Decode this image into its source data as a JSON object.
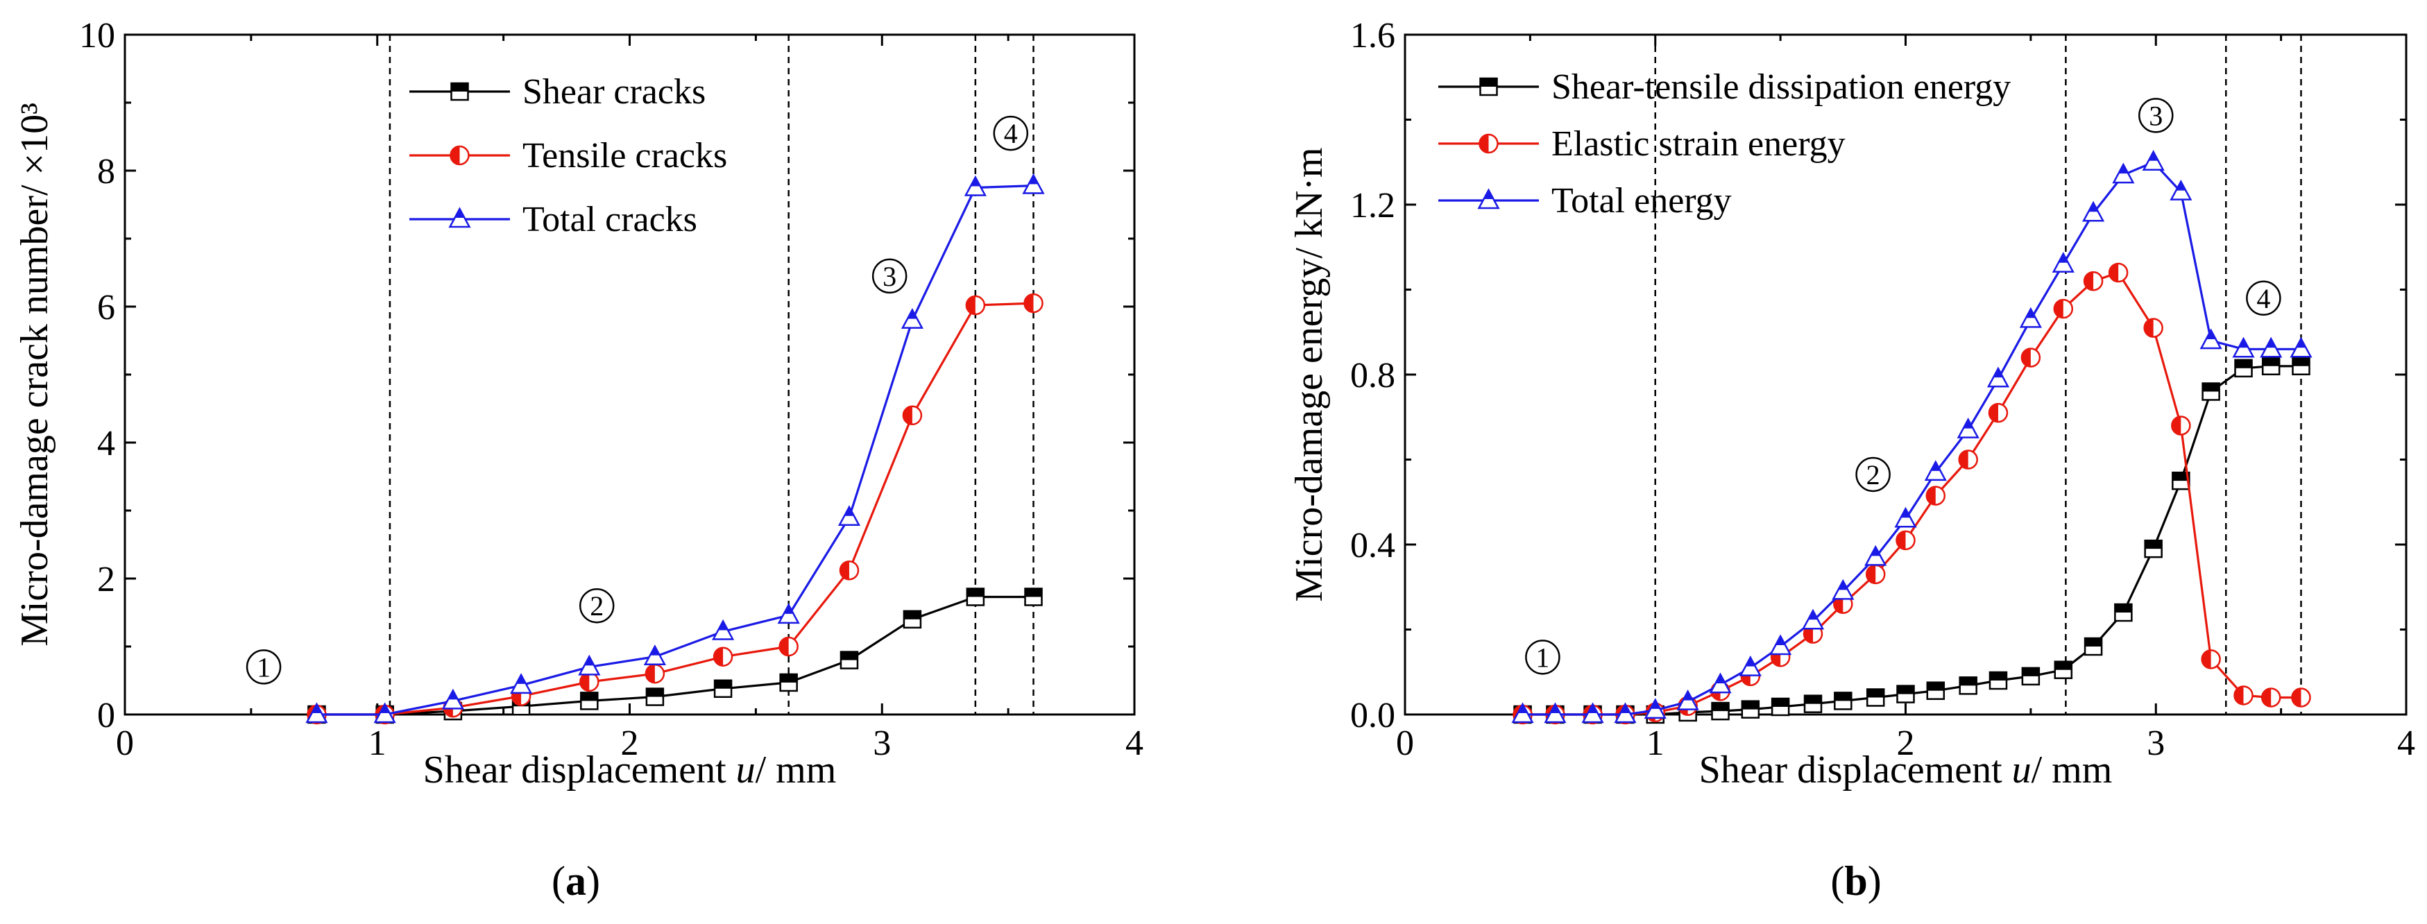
{
  "chart_data": [
    {
      "type": "line",
      "panel": "(a)",
      "panel_letter": "a",
      "xlabel_prefix": "Shear displacement ",
      "xlabel_var": "u",
      "xlabel_suffix": "/ mm",
      "ylabel": "Micro-damage crack number/ ×10³",
      "xlim": [
        0,
        4
      ],
      "ylim": [
        0,
        10
      ],
      "xticks": [
        0,
        1,
        2,
        3,
        4
      ],
      "yticks": [
        0,
        2,
        4,
        6,
        8,
        10
      ],
      "dividers": [
        1.05,
        2.63,
        3.37,
        3.6
      ],
      "phase_labels": [
        {
          "text": "1",
          "x": 0.55,
          "y": 0.7
        },
        {
          "text": "2",
          "x": 1.87,
          "y": 1.6
        },
        {
          "text": "3",
          "x": 3.03,
          "y": 6.45
        },
        {
          "text": "4",
          "x": 3.51,
          "y": 8.55
        }
      ],
      "legend_position": "top-left",
      "series": [
        {
          "name": "Shear cracks",
          "color": "#000000",
          "marker": "square",
          "x": [
            0.76,
            1.03,
            1.3,
            1.57,
            1.84,
            2.1,
            2.37,
            2.63,
            2.87,
            3.12,
            3.37,
            3.6
          ],
          "y": [
            0,
            0,
            0.05,
            0.12,
            0.2,
            0.26,
            0.38,
            0.47,
            0.8,
            1.4,
            1.73,
            1.73
          ]
        },
        {
          "name": "Tensile cracks",
          "color": "#e8180c",
          "marker": "circle-half",
          "x": [
            0.76,
            1.03,
            1.3,
            1.57,
            1.84,
            2.1,
            2.37,
            2.63,
            2.87,
            3.12,
            3.37,
            3.6
          ],
          "y": [
            0,
            0,
            0.1,
            0.27,
            0.48,
            0.6,
            0.85,
            1.0,
            2.12,
            4.4,
            6.02,
            6.05
          ]
        },
        {
          "name": "Total cracks",
          "color": "#1a1ae6",
          "marker": "triangle",
          "x": [
            0.76,
            1.03,
            1.3,
            1.57,
            1.84,
            2.1,
            2.37,
            2.63,
            2.87,
            3.12,
            3.37,
            3.6
          ],
          "y": [
            0,
            0,
            0.2,
            0.43,
            0.7,
            0.85,
            1.22,
            1.46,
            2.9,
            5.8,
            7.75,
            7.78
          ]
        }
      ]
    },
    {
      "type": "line",
      "panel": "(b)",
      "panel_letter": "b",
      "xlabel_prefix": "Shear displacement ",
      "xlabel_var": "u",
      "xlabel_suffix": "/ mm",
      "ylabel": "Micro-damage energy/ kN·m",
      "xlim": [
        0,
        4
      ],
      "ylim": [
        0,
        1.6
      ],
      "xticks": [
        0,
        1,
        2,
        3,
        4
      ],
      "yticks": [
        0.0,
        0.4,
        0.8,
        1.2,
        1.6
      ],
      "ytick_labels": [
        "0.0",
        "0.4",
        "0.8",
        "1.2",
        "1.6"
      ],
      "dividers": [
        1.0,
        2.64,
        3.28,
        3.58
      ],
      "phase_labels": [
        {
          "text": "1",
          "x": 0.55,
          "y": 0.135
        },
        {
          "text": "2",
          "x": 1.87,
          "y": 0.565
        },
        {
          "text": "3",
          "x": 3.0,
          "y": 1.41
        },
        {
          "text": "4",
          "x": 3.43,
          "y": 0.98
        }
      ],
      "legend_position": "top-left",
      "series": [
        {
          "name": "Shear-tensile dissipation energy",
          "color": "#000000",
          "marker": "square",
          "x": [
            0.47,
            0.6,
            0.75,
            0.88,
            1.0,
            1.13,
            1.26,
            1.38,
            1.5,
            1.63,
            1.75,
            1.88,
            2.0,
            2.12,
            2.25,
            2.37,
            2.5,
            2.63,
            2.75,
            2.87,
            2.99,
            3.1,
            3.22,
            3.35,
            3.46,
            3.58
          ],
          "y": [
            0,
            0,
            0,
            0,
            0,
            0.005,
            0.008,
            0.012,
            0.018,
            0.025,
            0.032,
            0.04,
            0.048,
            0.056,
            0.068,
            0.08,
            0.09,
            0.105,
            0.16,
            0.24,
            0.39,
            0.55,
            0.76,
            0.815,
            0.82,
            0.82
          ]
        },
        {
          "name": "Elastic strain energy",
          "color": "#e8180c",
          "marker": "circle-half",
          "x": [
            0.47,
            0.6,
            0.75,
            0.88,
            1.0,
            1.13,
            1.26,
            1.38,
            1.5,
            1.63,
            1.75,
            1.88,
            2.0,
            2.12,
            2.25,
            2.37,
            2.5,
            2.63,
            2.75,
            2.85,
            2.99,
            3.1,
            3.22,
            3.35,
            3.46,
            3.58
          ],
          "y": [
            0,
            0,
            0,
            0,
            0.005,
            0.02,
            0.055,
            0.09,
            0.135,
            0.19,
            0.26,
            0.33,
            0.41,
            0.515,
            0.6,
            0.71,
            0.84,
            0.955,
            1.02,
            1.04,
            0.91,
            0.68,
            0.13,
            0.045,
            0.04,
            0.04
          ]
        },
        {
          "name": "Total energy",
          "color": "#1a1ae6",
          "marker": "triangle",
          "x": [
            0.47,
            0.6,
            0.75,
            0.88,
            1.0,
            1.13,
            1.26,
            1.38,
            1.5,
            1.63,
            1.75,
            1.88,
            2.0,
            2.12,
            2.25,
            2.37,
            2.5,
            2.63,
            2.75,
            2.87,
            2.99,
            3.1,
            3.22,
            3.35,
            3.46,
            3.58
          ],
          "y": [
            0,
            0,
            0,
            0,
            0.01,
            0.03,
            0.07,
            0.11,
            0.16,
            0.22,
            0.29,
            0.37,
            0.46,
            0.57,
            0.67,
            0.79,
            0.93,
            1.06,
            1.18,
            1.27,
            1.3,
            1.23,
            0.88,
            0.86,
            0.86,
            0.86
          ]
        }
      ]
    }
  ]
}
